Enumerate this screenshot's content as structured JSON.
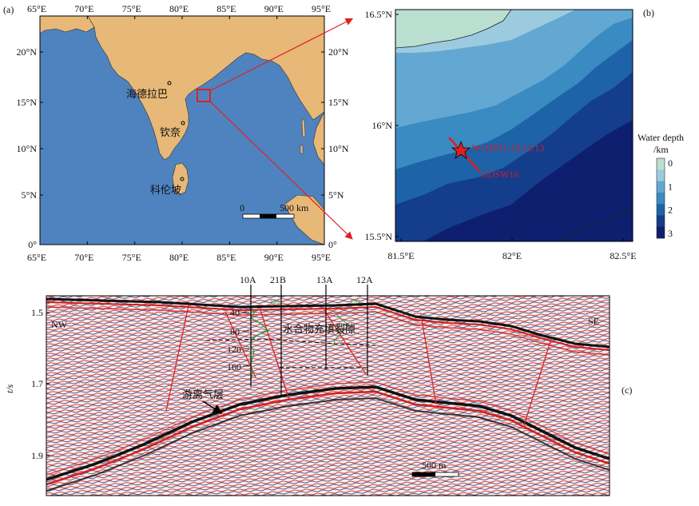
{
  "panel_a": {
    "label": "(a)",
    "top_ticks": [
      "65°E",
      "70°E",
      "75°E",
      "80°E",
      "85°E",
      "90°E",
      "95°E"
    ],
    "bottom_ticks": [
      "65°E",
      "70°E",
      "75°E",
      "80°E",
      "85°E",
      "90°E",
      "95°E"
    ],
    "left_ticks": [
      "20°N",
      "15°N",
      "10°N",
      "5°N",
      "0°"
    ],
    "right_ticks": [
      "20°N",
      "15°N",
      "10°N",
      "5°N",
      "0°"
    ],
    "cities": [
      "海德拉巴",
      "钦奈",
      "科伦坡"
    ],
    "scale_zero": "0",
    "scale_text": "500 km",
    "colors": {
      "sea": "#4f83bf",
      "land": "#e7b877",
      "box": "#e02020"
    }
  },
  "panel_b": {
    "label": "(b)",
    "left_ticks": [
      "16.5°N",
      "16°N",
      "15.5°N"
    ],
    "bottom_ticks": [
      "81.5°E",
      "82°E",
      "82.5°E"
    ],
    "site_label": "NGHP01-10/12/13",
    "line_label": "GDSW16",
    "legend_title_1": "Water depth",
    "legend_title_2": "/km",
    "legend_ticks": [
      "0",
      "1",
      "2",
      "3"
    ],
    "depth_colors": [
      "#b9dfd0",
      "#9ccbe0",
      "#62a8d2",
      "#3a8bc2",
      "#1e62a8",
      "#143d8c",
      "#0d1f6e"
    ]
  },
  "panel_c": {
    "label": "(c)",
    "y_axis_label": "t/s",
    "y_ticks": [
      "1.5",
      "1.7",
      "1.9"
    ],
    "wells": [
      "10A",
      "21B",
      "13A",
      "12A"
    ],
    "log_depths": [
      "40",
      "80",
      "120",
      "160"
    ],
    "side_left": "NW",
    "side_right": "SE",
    "annotation_hydrate": "水合物充填裂隙",
    "annotation_gas": "游离气层",
    "scale_text": "500 m",
    "log_value_a": "120",
    "log_value_b": "120"
  }
}
